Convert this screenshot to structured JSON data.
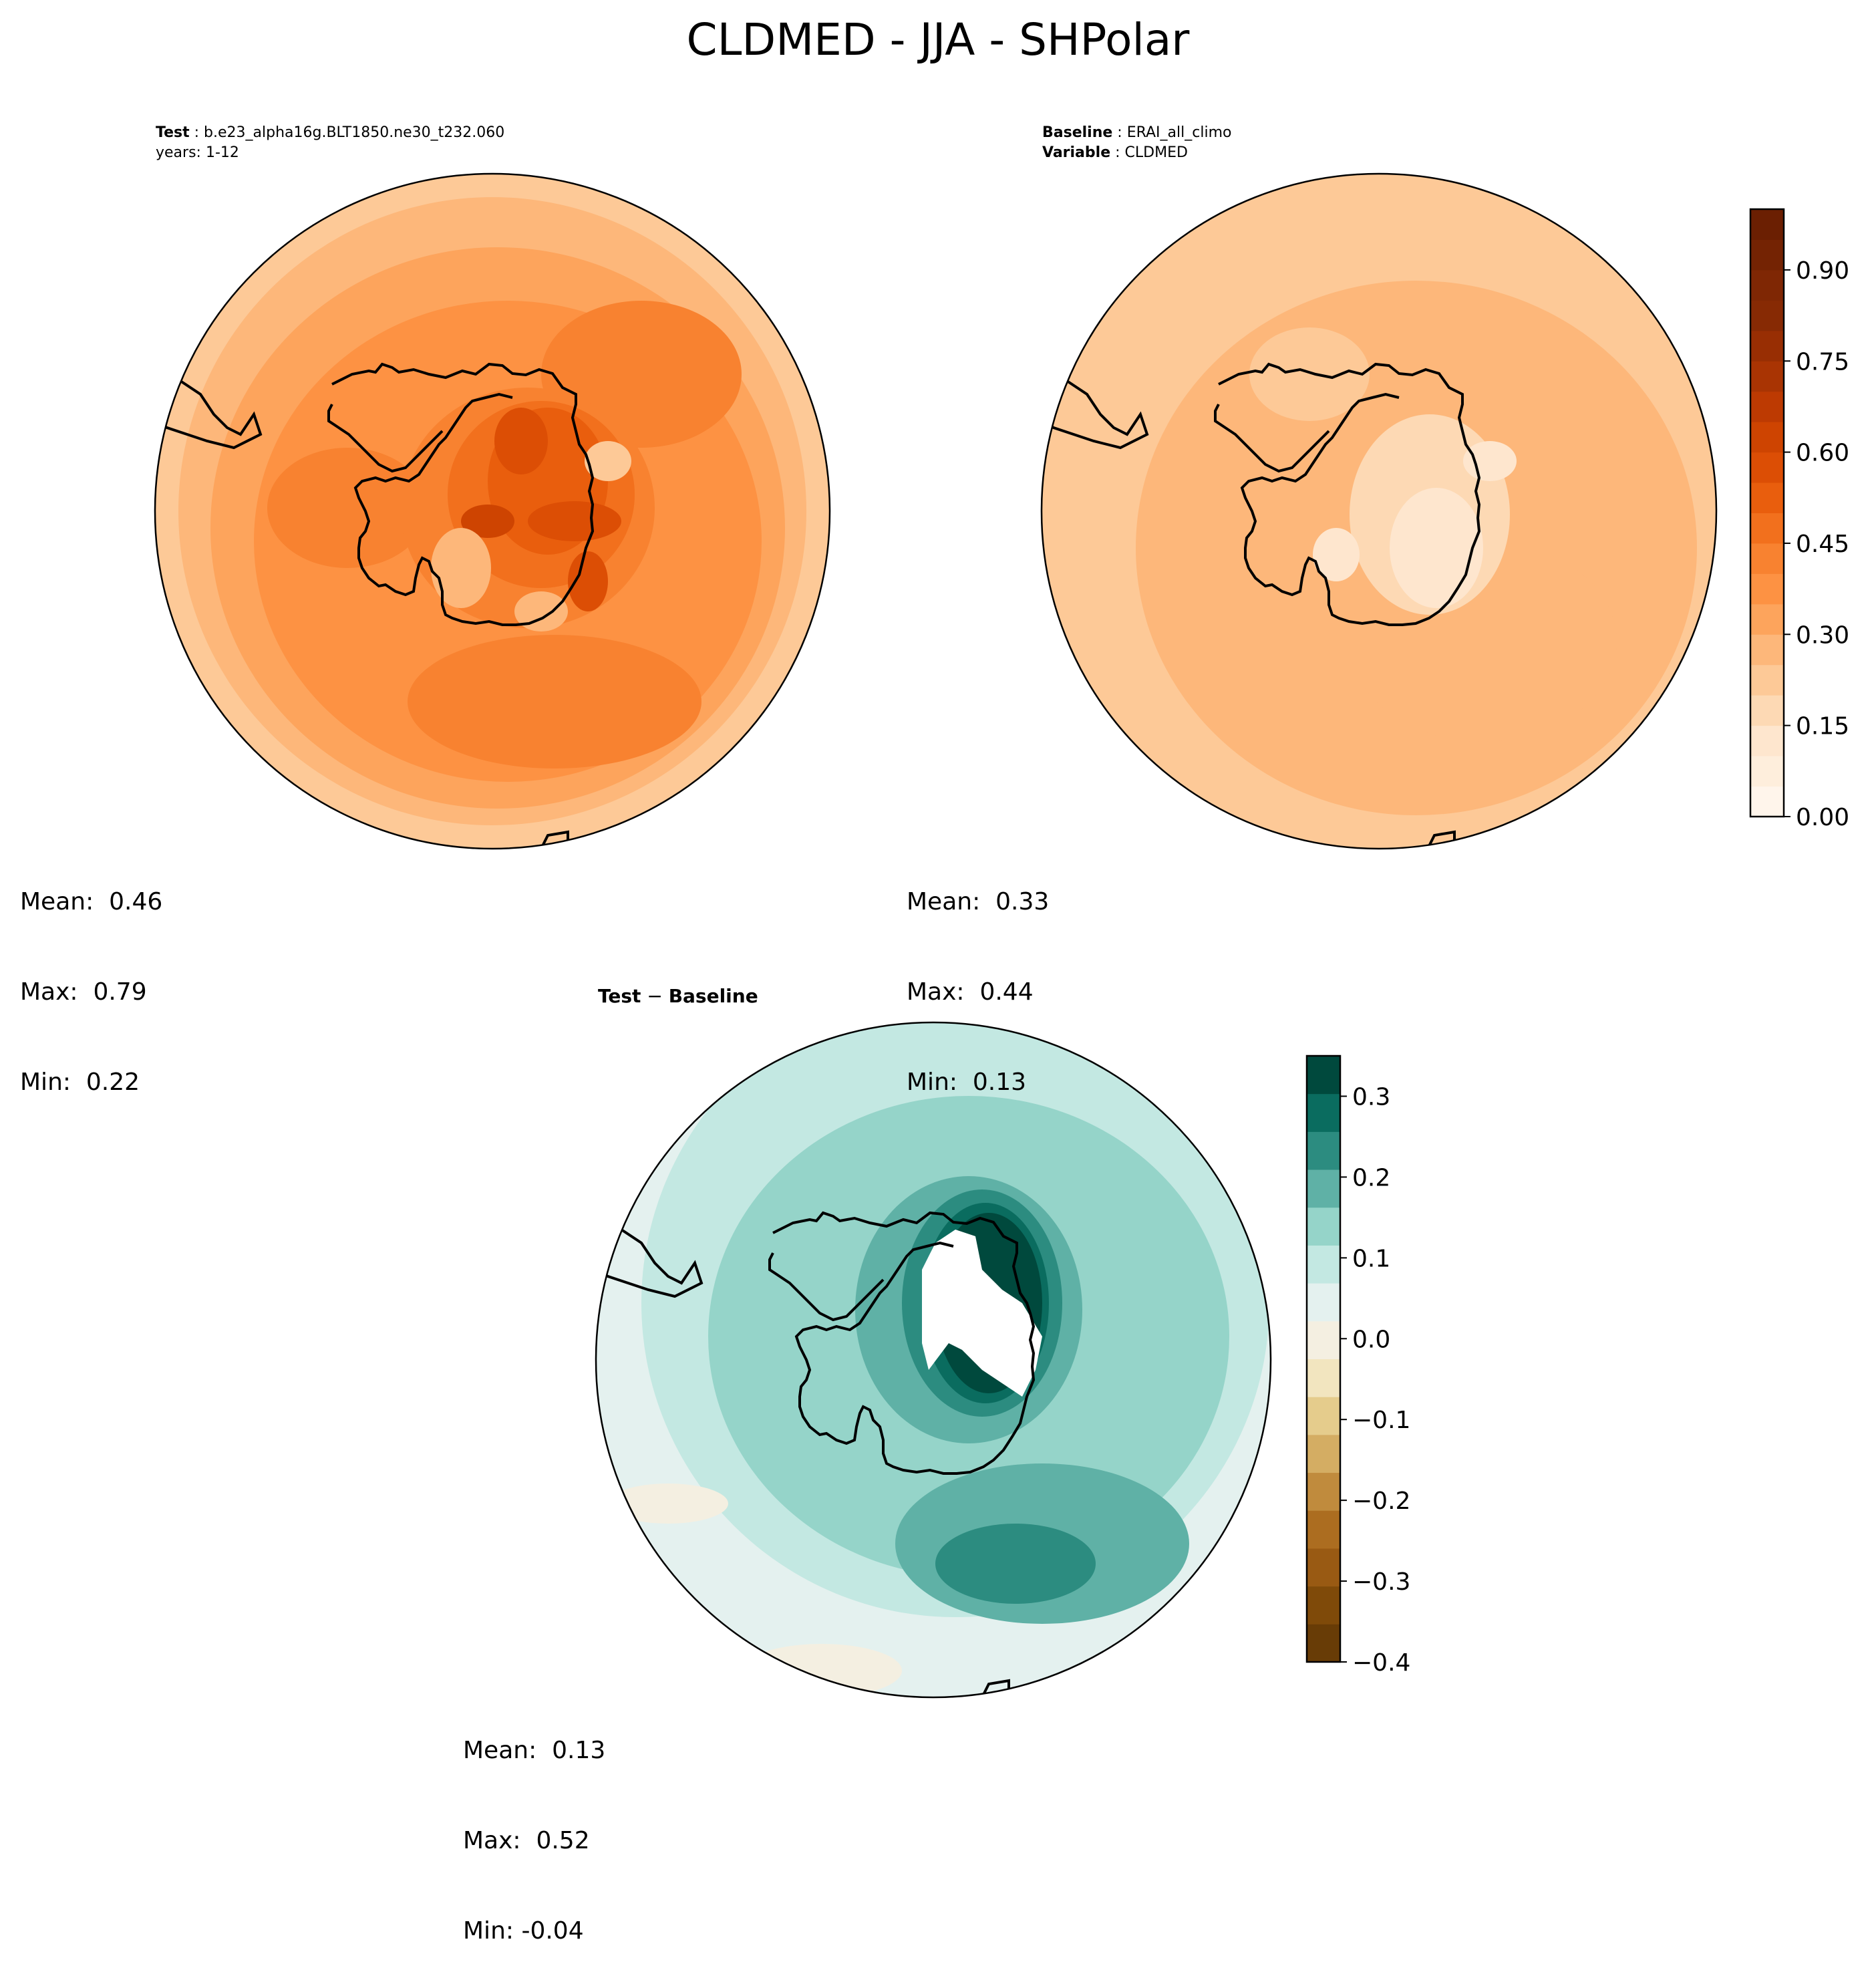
{
  "title": "CLDMED - JJA - SHPolar",
  "panels": {
    "test": {
      "label_bold": "Test",
      "label_value": "b.e23_alpha16g.BLT1850.ne30_t232.060",
      "line2": "years: 1-12",
      "stats": {
        "mean": "Mean:  0.46",
        "max": "Max:  0.79",
        "min": "Min:  0.22"
      }
    },
    "baseline": {
      "label_bold": "Baseline",
      "label_value": "ERAI_all_climo",
      "line2_bold": "Variable",
      "line2_value": "CLDMED",
      "stats": {
        "mean": "Mean:  0.33",
        "max": "Max:  0.44",
        "min": "Min:  0.13"
      }
    },
    "diff": {
      "label_bold": "Test",
      "label_sep": " − ",
      "label_bold2": "Baseline",
      "stats": {
        "mean": "Mean:  0.13",
        "max": "Max:  0.52",
        "min": "Min: -0.04"
      }
    }
  },
  "chart_data": [
    {
      "type": "heatmap",
      "name": "test",
      "projection": "south-polar-stereographic",
      "title": "Test : b.e23_alpha16g.BLT1850.ne30_t232.060  years: 1-12",
      "mean": 0.46,
      "max": 0.79,
      "min": 0.22
    },
    {
      "type": "heatmap",
      "name": "baseline",
      "projection": "south-polar-stereographic",
      "title": "Baseline : ERAI_all_climo  Variable : CLDMED",
      "mean": 0.33,
      "max": 0.44,
      "min": 0.13
    },
    {
      "type": "heatmap",
      "name": "difference",
      "projection": "south-polar-stereographic",
      "title": "Test − Baseline",
      "mean": 0.13,
      "max": 0.52,
      "min": -0.04
    }
  ],
  "colorbars": {
    "main": {
      "range": [
        0,
        1
      ],
      "levels": 20,
      "ticks": [
        0.0,
        0.15,
        0.3,
        0.45,
        0.6,
        0.75,
        0.9
      ],
      "tick_labels": [
        "0.00",
        "0.15",
        "0.30",
        "0.45",
        "0.60",
        "0.75",
        "0.90"
      ],
      "colors": [
        "#fff5eb",
        "#feeedc",
        "#fee6ce",
        "#fdd9b4",
        "#fdc997",
        "#fdb77a",
        "#fda45c",
        "#fd9243",
        "#f88230",
        "#f2701d",
        "#e95e0d",
        "#dc4e05",
        "#ce4401",
        "#bd3a02",
        "#a93403",
        "#982e03",
        "#872a04",
        "#7f2704",
        "#742303",
        "#6b1f02"
      ]
    },
    "diff": {
      "range": [
        -0.4,
        0.35
      ],
      "levels": 15,
      "ticks": [
        -0.4,
        -0.3,
        -0.2,
        -0.1,
        0.0,
        0.1,
        0.2,
        0.3
      ],
      "tick_labels": [
        "−0.4",
        "−0.3",
        "−0.2",
        "−0.1",
        "0.0",
        "0.1",
        "0.2",
        "0.3"
      ],
      "colors": [
        "#683c06",
        "#7f4a09",
        "#995a13",
        "#ac6d20",
        "#c08b3d",
        "#d4ad63",
        "#e5cc8c",
        "#f2e5bf",
        "#f4efe1",
        "#e4f1ef",
        "#c3e8e2",
        "#95d4c9",
        "#5fb1a6",
        "#2c8c80",
        "#0a6c5f",
        "#00493d"
      ]
    }
  }
}
